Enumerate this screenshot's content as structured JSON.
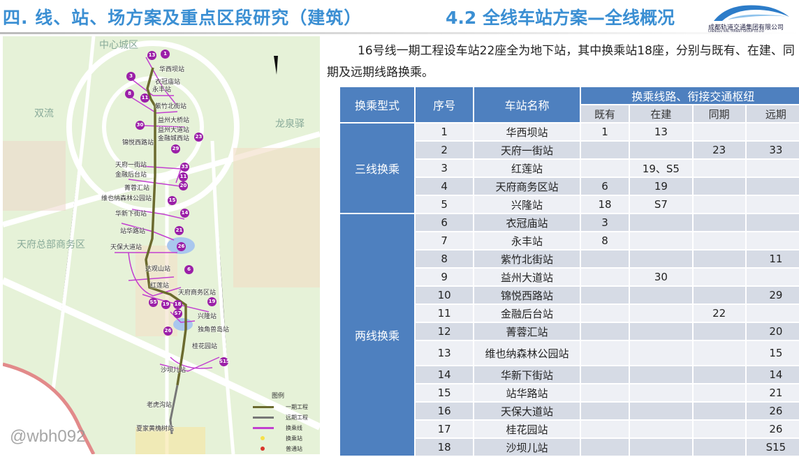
{
  "header": {
    "section_title": "四. 线、站、场方案及重点区段研究（建筑）",
    "sub_title": "4.2 全线车站方案—全线概况",
    "logo_cn": "成都轨道交通集团有限公司",
    "logo_en": "CHENGDU RAIL TRANSIT GROUP CO.LTD"
  },
  "intro": "16号线一期工程设车站22座全为地下站，其中换乘站18座，分别与既有、在建、同期及远期线路换乘。",
  "map": {
    "areas": [
      "中心城区",
      "双流",
      "龙泉驿",
      "天府总部商务区"
    ],
    "stations": [
      "华西坝站",
      "衣冠庙站",
      "永丰站",
      "紫竹北街站",
      "益州大桥站",
      "益州大道站",
      "金融城西站",
      "锦悦西路站",
      "天府一街站",
      "金融后台站",
      "菁蓉汇站",
      "维也纳森林公园站",
      "华新下街站",
      "站华路站",
      "天保大道站",
      "达观山站",
      "红莲站",
      "天府商务区站",
      "兴隆站",
      "独角兽岛站",
      "桂花园站",
      "沙坝儿站",
      "老虎沟站",
      "夏家黄桷树站"
    ],
    "line_badges": [
      "13",
      "1",
      "3",
      "8",
      "11",
      "30",
      "23",
      "29",
      "33",
      "11",
      "20",
      "15",
      "14",
      "21",
      "26",
      "6",
      "S5",
      "19",
      "18",
      "S7",
      "19",
      "26",
      "S15"
    ],
    "legend": {
      "title": "图例",
      "items": [
        "一期工程",
        "远期工程",
        "换乘线",
        "换乘站",
        "普通站"
      ]
    },
    "colors": {
      "phase1": "#6b6a2e",
      "future": "#777777",
      "transfer_line": "#c23fd0",
      "transfer_station": "#f5e04a",
      "normal_station": "#d9362b"
    }
  },
  "table": {
    "headers": {
      "type": "换乘型式",
      "no": "序号",
      "name": "车站名称",
      "group": "换乘线路、衔接交通枢纽",
      "existing": "既有",
      "building": "在建",
      "same": "同期",
      "future": "远期"
    },
    "groups": [
      {
        "label": "三线换乘",
        "rows": 5
      },
      {
        "label": "两线换乘",
        "rows": 13
      }
    ],
    "rows": [
      [
        "1",
        "华西坝站",
        "1",
        "13",
        "",
        ""
      ],
      [
        "2",
        "天府一街站",
        "",
        "",
        "23",
        "33"
      ],
      [
        "3",
        "红莲站",
        "",
        "19、S5",
        "",
        ""
      ],
      [
        "4",
        "天府商务区站",
        "6",
        "19",
        "",
        ""
      ],
      [
        "5",
        "兴隆站",
        "18",
        "S7",
        "",
        ""
      ],
      [
        "6",
        "衣冠庙站",
        "3",
        "",
        "",
        ""
      ],
      [
        "7",
        "永丰站",
        "8",
        "",
        "",
        ""
      ],
      [
        "8",
        "紫竹北街站",
        "",
        "",
        "",
        "11"
      ],
      [
        "9",
        "益州大道站",
        "",
        "30",
        "",
        ""
      ],
      [
        "10",
        "锦悦西路站",
        "",
        "",
        "",
        "29"
      ],
      [
        "11",
        "金融后台站",
        "",
        "",
        "22",
        ""
      ],
      [
        "12",
        "菁蓉汇站",
        "",
        "",
        "",
        "20"
      ],
      [
        "13",
        "维也纳森林公园站",
        "",
        "",
        "",
        "15"
      ],
      [
        "14",
        "华新下街站",
        "",
        "",
        "",
        "14"
      ],
      [
        "15",
        "站华路站",
        "",
        "",
        "",
        "21"
      ],
      [
        "16",
        "天保大道站",
        "",
        "",
        "",
        "26"
      ],
      [
        "17",
        "桂花园站",
        "",
        "",
        "",
        "26"
      ],
      [
        "18",
        "沙坝儿站",
        "",
        "",
        "",
        "S15"
      ]
    ]
  },
  "watermark": "@wbh092",
  "colors": {
    "title": "#3b8fd3",
    "table_header": "#4e80bf"
  }
}
